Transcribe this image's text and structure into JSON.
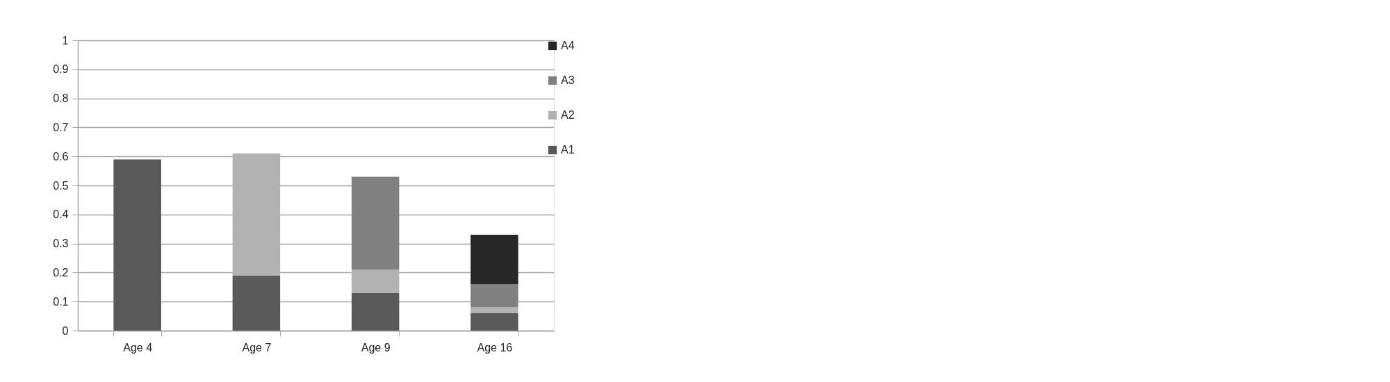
{
  "chart_data": {
    "type": "bar",
    "stacked": true,
    "categories": [
      "Age 4",
      "Age 7",
      "Age 9",
      "Age 16"
    ],
    "series": [
      {
        "name": "A1",
        "color": "#595959",
        "values": [
          0.59,
          0.19,
          0.13,
          0.06
        ]
      },
      {
        "name": "A2",
        "color": "#b2b2b2",
        "values": [
          null,
          0.42,
          0.08,
          0.02
        ]
      },
      {
        "name": "A3",
        "color": "#808080",
        "values": [
          null,
          null,
          0.32,
          0.08
        ]
      },
      {
        "name": "A4",
        "color": "#262626",
        "values": [
          null,
          null,
          null,
          0.17
        ]
      }
    ],
    "ylim": [
      0,
      1
    ],
    "yticks": [
      0,
      0.1,
      0.2,
      0.3,
      0.4,
      0.5,
      0.6,
      0.7,
      0.8,
      0.9,
      1
    ],
    "grid": "y",
    "legend": "right"
  }
}
